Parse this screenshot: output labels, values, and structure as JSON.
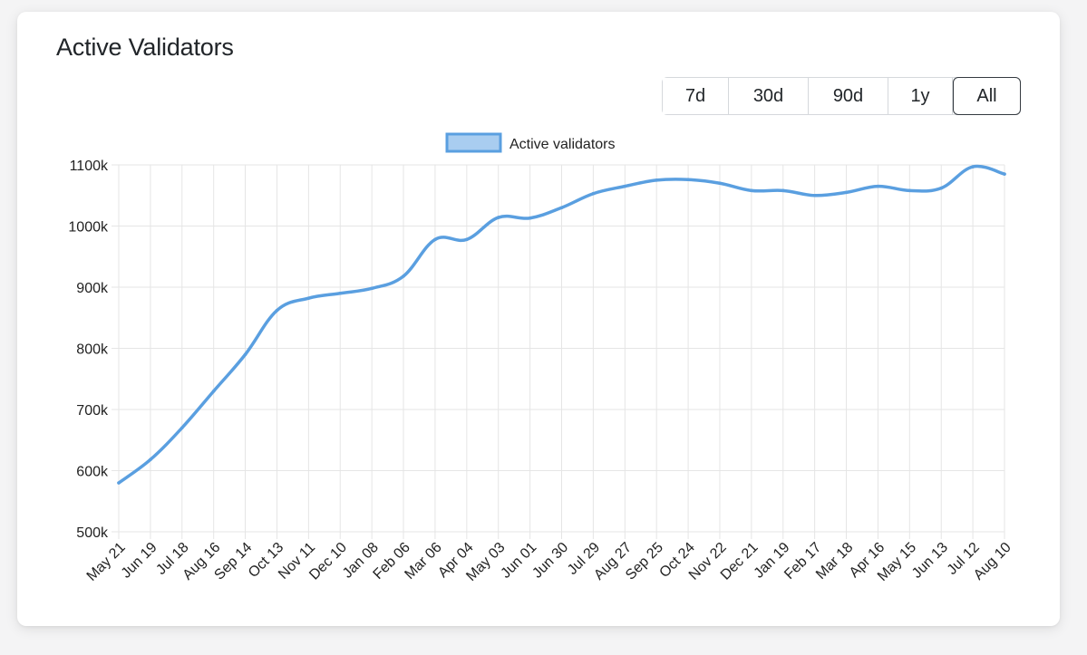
{
  "card": {
    "title": "Active Validators"
  },
  "range_buttons": [
    {
      "label": "7d",
      "active": false
    },
    {
      "label": "30d",
      "active": false
    },
    {
      "label": "90d",
      "active": false
    },
    {
      "label": "1y",
      "active": false
    },
    {
      "label": "All",
      "active": true
    }
  ],
  "colors": {
    "line": "#5a9fe0",
    "legend_fill": "#a9cdf0",
    "grid": "#e5e5e5",
    "tick_text": "#222222"
  },
  "chart_data": {
    "type": "line",
    "legend": [
      "Active validators"
    ],
    "legend_position": "top-center",
    "grid": true,
    "yticks": [
      500000,
      600000,
      700000,
      800000,
      900000,
      1000000,
      1100000
    ],
    "ytick_labels": [
      "500k",
      "600k",
      "700k",
      "800k",
      "900k",
      "1000k",
      "1100k"
    ],
    "ylim": [
      500000,
      1100000
    ],
    "xtick_labels": [
      "May 21",
      "Jun 19",
      "Jul 18",
      "Aug 16",
      "Sep 14",
      "Oct 13",
      "Nov 11",
      "Dec 10",
      "Jan 08",
      "Feb 06",
      "Mar 06",
      "Apr 04",
      "May 03",
      "Jun 01",
      "Jun 30",
      "Jul 29",
      "Aug 27",
      "Sep 25",
      "Oct 24",
      "Nov 22",
      "Dec 21",
      "Jan 19",
      "Feb 17",
      "Mar 18",
      "Apr 16",
      "May 15",
      "Jun 13",
      "Jul 12",
      "Aug 10"
    ],
    "series": [
      {
        "name": "Active validators",
        "points": [
          [
            "May 21",
            580000
          ],
          [
            "Jun 19",
            618000
          ],
          [
            "Jul 18",
            670000
          ],
          [
            "Aug 16",
            730000
          ],
          [
            "Sep 14",
            790000
          ],
          [
            "Oct 13",
            862000
          ],
          [
            "Nov 11",
            882000
          ],
          [
            "Dec 10",
            890000
          ],
          [
            "Jan 08",
            898000
          ],
          [
            "Feb 06",
            918000
          ],
          [
            "Mar 06",
            978000
          ],
          [
            "Apr 04",
            978000
          ],
          [
            "May 03",
            1014000
          ],
          [
            "Jun 01",
            1013000
          ],
          [
            "Jun 30",
            1030000
          ],
          [
            "Jul 29",
            1053000
          ],
          [
            "Aug 27",
            1065000
          ],
          [
            "Sep 25",
            1075000
          ],
          [
            "Oct 24",
            1076000
          ],
          [
            "Nov 22",
            1070000
          ],
          [
            "Dec 21",
            1058000
          ],
          [
            "Jan 19",
            1058000
          ],
          [
            "Feb 17",
            1050000
          ],
          [
            "Mar 18",
            1055000
          ],
          [
            "Apr 16",
            1065000
          ],
          [
            "May 15",
            1058000
          ],
          [
            "Jun 13",
            1062000
          ],
          [
            "Jul 12",
            1097000
          ],
          [
            "Aug 10",
            1085000
          ]
        ]
      }
    ]
  }
}
